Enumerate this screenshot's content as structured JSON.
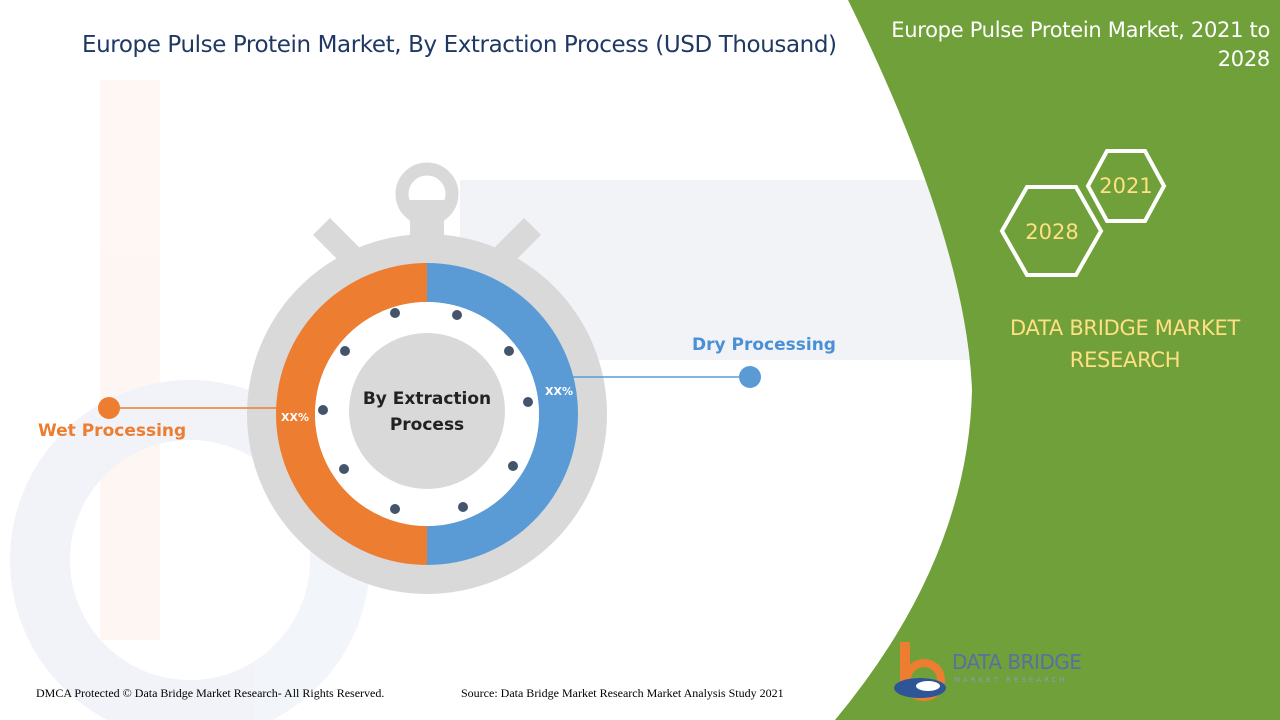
{
  "title": "Europe Pulse Protein Market, By Extraction Process (USD Thousand)",
  "panel": {
    "title": "Europe Pulse Protein Market, 2021 to 2028",
    "year_start": "2021",
    "year_end": "2028",
    "brand": "DATA BRIDGE MARKET RESEARCH",
    "color": "#70a03a"
  },
  "chart_data": {
    "type": "pie",
    "center_label": "By Extraction Process",
    "series": [
      {
        "name": "Dry Processing",
        "value": 50,
        "value_label": "XX%",
        "color": "#5b9bd5"
      },
      {
        "name": "Wet Processing",
        "value": 50,
        "value_label": "XX%",
        "color": "#ed7d31"
      }
    ]
  },
  "footer": {
    "copyright": "DMCA Protected © Data Bridge Market Research- All Rights Reserved.",
    "source": "Source: Data Bridge Market Research Market Analysis Study 2021"
  },
  "logo": {
    "name": "DATA BRIDGE",
    "tagline": "MARKET RESEARCH"
  }
}
